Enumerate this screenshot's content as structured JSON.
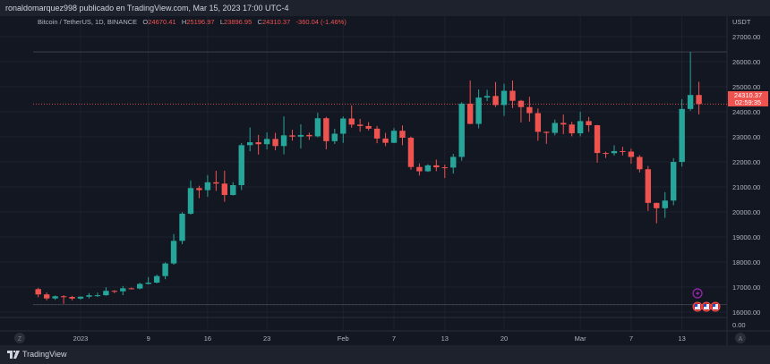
{
  "header": {
    "publisher_line": "ronaldomarquez998 publicado en TradingView.com, Mar 15, 2023 17:00 UTC-4"
  },
  "legend": {
    "symbol": "Bitcoin / TetherUS, 1D, BINANCE",
    "o_label": "O",
    "o": "24670.41",
    "h_label": "H",
    "h": "25196.97",
    "l_label": "L",
    "l": "23896.95",
    "c_label": "C",
    "c": "24310.37",
    "change": "-360.04 (-1.46%)"
  },
  "price_badge": {
    "price": "24310.37",
    "countdown": "02:59:35"
  },
  "footer": {
    "brand": "TradingView"
  },
  "buttons": {
    "zoom": "Z",
    "auto": "A"
  },
  "colors": {
    "background": "#131722",
    "up": "#26a69a",
    "down": "#ef5350",
    "event": "#9c27b0"
  },
  "chart_data": {
    "type": "candlestick",
    "currency_label": "USDT",
    "ylim": [
      15500,
      27500
    ],
    "y_ticks": [
      "27000.00",
      "26000.00",
      "25000.00",
      "24000.00",
      "23000.00",
      "22000.00",
      "21000.00",
      "20000.00",
      "19000.00",
      "18000.00",
      "17000.00",
      "16000.00"
    ],
    "lower_pane_tick": "0.00",
    "x_ticks": [
      {
        "date": "2023-01-01",
        "label": "2023"
      },
      {
        "date": "2023-01-09",
        "label": "9"
      },
      {
        "date": "2023-01-16",
        "label": "16"
      },
      {
        "date": "2023-01-23",
        "label": "23"
      },
      {
        "date": "2023-02-01",
        "label": "Feb"
      },
      {
        "date": "2023-02-07",
        "label": "7"
      },
      {
        "date": "2023-02-13",
        "label": "13"
      },
      {
        "date": "2023-02-20",
        "label": "20"
      },
      {
        "date": "2023-03-01",
        "label": "Mar"
      },
      {
        "date": "2023-03-07",
        "label": "7"
      },
      {
        "date": "2023-03-13",
        "label": "13"
      }
    ],
    "horizontal_lines": [
      26390,
      16300
    ],
    "current_price": 24310.37,
    "candles": [
      [
        "2022-12-27",
        16919,
        16972,
        16592,
        16707
      ],
      [
        "2022-12-28",
        16707,
        16785,
        16469,
        16547
      ],
      [
        "2022-12-29",
        16547,
        16664,
        16488,
        16633
      ],
      [
        "2022-12-30",
        16633,
        16677,
        16333,
        16607
      ],
      [
        "2022-12-31",
        16607,
        16650,
        16470,
        16542
      ],
      [
        "2023-01-01",
        16542,
        16630,
        16499,
        16616
      ],
      [
        "2023-01-02",
        16616,
        16760,
        16548,
        16672
      ],
      [
        "2023-01-03",
        16672,
        16778,
        16605,
        16675
      ],
      [
        "2023-01-04",
        16675,
        16991,
        16652,
        16850
      ],
      [
        "2023-01-05",
        16850,
        16879,
        16753,
        16831
      ],
      [
        "2023-01-06",
        16831,
        17041,
        16679,
        16950
      ],
      [
        "2023-01-07",
        16950,
        16981,
        16908,
        16943
      ],
      [
        "2023-01-08",
        16943,
        17176,
        16911,
        17127
      ],
      [
        "2023-01-09",
        17127,
        17398,
        17104,
        17178
      ],
      [
        "2023-01-10",
        17178,
        17499,
        17152,
        17440
      ],
      [
        "2023-01-11",
        17440,
        17990,
        17315,
        17943
      ],
      [
        "2023-01-12",
        17943,
        19117,
        17892,
        18846
      ],
      [
        "2023-01-13",
        18846,
        19993,
        18714,
        19930
      ],
      [
        "2023-01-14",
        19930,
        21258,
        19889,
        20954
      ],
      [
        "2023-01-15",
        20954,
        21050,
        20551,
        20871
      ],
      [
        "2023-01-16",
        20871,
        21474,
        20611,
        21185
      ],
      [
        "2023-01-17",
        21185,
        21647,
        20841,
        21132
      ],
      [
        "2023-01-18",
        21132,
        21650,
        20407,
        20677
      ],
      [
        "2023-01-19",
        20677,
        21192,
        20659,
        21071
      ],
      [
        "2023-01-20",
        21071,
        22755,
        20873,
        22667
      ],
      [
        "2023-01-21",
        22667,
        23371,
        22422,
        22783
      ],
      [
        "2023-01-22",
        22783,
        23078,
        22292,
        22707
      ],
      [
        "2023-01-23",
        22707,
        23180,
        22500,
        22916
      ],
      [
        "2023-01-24",
        22916,
        23162,
        22462,
        22632
      ],
      [
        "2023-01-25",
        22632,
        23816,
        22300,
        23060
      ],
      [
        "2023-01-26",
        23060,
        23282,
        22850,
        23009
      ],
      [
        "2023-01-27",
        23009,
        23500,
        22534,
        23074
      ],
      [
        "2023-01-28",
        23074,
        23165,
        22878,
        23022
      ],
      [
        "2023-01-29",
        23022,
        23960,
        22978,
        23742
      ],
      [
        "2023-01-30",
        23742,
        23800,
        22500,
        22827
      ],
      [
        "2023-01-31",
        22827,
        23320,
        22715,
        23125
      ],
      [
        "2023-02-01",
        23125,
        23812,
        22760,
        23732
      ],
      [
        "2023-02-02",
        23732,
        24255,
        23362,
        23488
      ],
      [
        "2023-02-03",
        23488,
        23715,
        23204,
        23431
      ],
      [
        "2023-02-04",
        23431,
        23587,
        23253,
        23326
      ],
      [
        "2023-02-05",
        23326,
        23433,
        22745,
        22932
      ],
      [
        "2023-02-06",
        22932,
        23158,
        22628,
        22762
      ],
      [
        "2023-02-07",
        22762,
        23350,
        22745,
        23242
      ],
      [
        "2023-02-08",
        23242,
        23452,
        22665,
        22963
      ],
      [
        "2023-02-09",
        22963,
        23011,
        21688,
        21796
      ],
      [
        "2023-02-10",
        21796,
        21938,
        21451,
        21625
      ],
      [
        "2023-02-11",
        21625,
        21906,
        21599,
        21862
      ],
      [
        "2023-02-12",
        21862,
        22090,
        21630,
        21783
      ],
      [
        "2023-02-13",
        21783,
        21890,
        21351,
        21773
      ],
      [
        "2023-02-14",
        21773,
        22322,
        21532,
        22199
      ],
      [
        "2023-02-15",
        22199,
        24380,
        22047,
        24324
      ],
      [
        "2023-02-16",
        24324,
        25250,
        23505,
        23517
      ],
      [
        "2023-02-17",
        23517,
        24893,
        23339,
        24569
      ],
      [
        "2023-02-18",
        24569,
        24877,
        24430,
        24631
      ],
      [
        "2023-02-19",
        24631,
        25192,
        24192,
        24271
      ],
      [
        "2023-02-20",
        24271,
        25121,
        23840,
        24838
      ],
      [
        "2023-02-21",
        24838,
        25250,
        24148,
        24439
      ],
      [
        "2023-02-22",
        24439,
        24476,
        23574,
        24188
      ],
      [
        "2023-02-23",
        24188,
        24600,
        23608,
        23947
      ],
      [
        "2023-02-24",
        23947,
        24132,
        22841,
        23199
      ],
      [
        "2023-02-25",
        23199,
        23218,
        22722,
        23158
      ],
      [
        "2023-02-26",
        23158,
        23689,
        23059,
        23554
      ],
      [
        "2023-02-27",
        23554,
        23888,
        23106,
        23492
      ],
      [
        "2023-02-28",
        23492,
        23600,
        23020,
        23141
      ],
      [
        "2023-03-01",
        23141,
        23999,
        23020,
        23628
      ],
      [
        "2023-03-02",
        23628,
        23796,
        23195,
        23465
      ],
      [
        "2023-03-03",
        23465,
        23476,
        21971,
        22354
      ],
      [
        "2023-03-04",
        22354,
        22410,
        22157,
        22346
      ],
      [
        "2023-03-05",
        22346,
        22662,
        22252,
        22430
      ],
      [
        "2023-03-06",
        22430,
        22602,
        22258,
        22410
      ],
      [
        "2023-03-07",
        22410,
        22527,
        21927,
        22197
      ],
      [
        "2023-03-08",
        22197,
        22268,
        21580,
        21705
      ],
      [
        "2023-03-09",
        21705,
        21834,
        20042,
        20362
      ],
      [
        "2023-03-10",
        20362,
        20367,
        19549,
        20150
      ],
      [
        "2023-03-11",
        20150,
        20792,
        19765,
        20455
      ],
      [
        "2023-03-12",
        20455,
        22150,
        20271,
        21997
      ],
      [
        "2023-03-13",
        21997,
        24500,
        21813,
        24113
      ],
      [
        "2023-03-14",
        24113,
        26386,
        24041,
        24670
      ],
      [
        "2023-03-15",
        24670,
        25196,
        23896,
        24310
      ]
    ]
  }
}
